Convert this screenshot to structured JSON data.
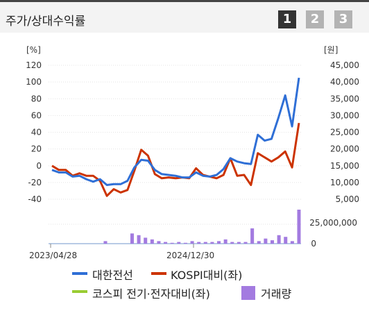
{
  "header": {
    "title": "주가/상대수익률",
    "pages": [
      "1",
      "2",
      "3"
    ],
    "active_page": 0
  },
  "colors": {
    "stock": "#2f6fd6",
    "kospi": "#cc3300",
    "sector": "#99cc33",
    "volume": "#a37be0",
    "active_btn": "#333333",
    "inactive_btn": "#b3b3b3"
  },
  "chart_data": {
    "type": "line",
    "left_axis": {
      "unit": "[%]",
      "ticks": [
        "120",
        "100",
        "80",
        "60",
        "40",
        "20",
        "0",
        "-20",
        "-40"
      ],
      "range": [
        -40,
        120
      ]
    },
    "right_axis": {
      "unit": "[원]",
      "ticks": [
        "45,000",
        "40,000",
        "35,000",
        "30,000",
        "25,000",
        "20,000",
        "15,000",
        "10,000",
        "5,000"
      ],
      "range": [
        5000,
        45000
      ]
    },
    "volume_axis": {
      "ticks": [
        "25,000,000",
        "0"
      ],
      "max": 25000000
    },
    "x_ticks": [
      "2023/04/28",
      "2024/12/30"
    ],
    "series": [
      {
        "name": "대한전선",
        "values": [
          -5,
          -8,
          -8,
          -13,
          -12,
          -16,
          -19,
          -16,
          -23,
          -22,
          -22,
          -18,
          -2,
          7,
          6,
          -5,
          -10,
          -11,
          -12,
          -14,
          -14,
          -8,
          -12,
          -13,
          -11,
          -4,
          9,
          5,
          3,
          2,
          37,
          30,
          32,
          57,
          84,
          47,
          105
        ]
      },
      {
        "name": "KOSPI대비(좌)",
        "values": [
          0,
          -5,
          -5,
          -12,
          -9,
          -12,
          -12,
          -18,
          -36,
          -28,
          -32,
          -29,
          -6,
          19,
          12,
          -10,
          -15,
          -14,
          -15,
          -14,
          -15,
          -3,
          -11,
          -13,
          -15,
          -11,
          9,
          -12,
          -11,
          -23,
          15,
          10,
          5,
          10,
          17,
          -2,
          51
        ]
      },
      {
        "name": "코스피 전기·전자대비(좌)",
        "values": []
      }
    ],
    "volume_series": {
      "name": "거래량",
      "values": [
        0,
        0,
        0,
        0,
        0,
        0,
        0,
        0,
        3,
        0,
        0,
        0,
        12,
        10,
        7,
        5,
        3,
        2,
        1,
        2,
        1,
        3,
        2,
        2,
        2,
        3,
        5,
        2,
        2,
        2,
        18,
        3,
        6,
        4,
        10,
        8,
        3,
        40
      ]
    }
  }
}
